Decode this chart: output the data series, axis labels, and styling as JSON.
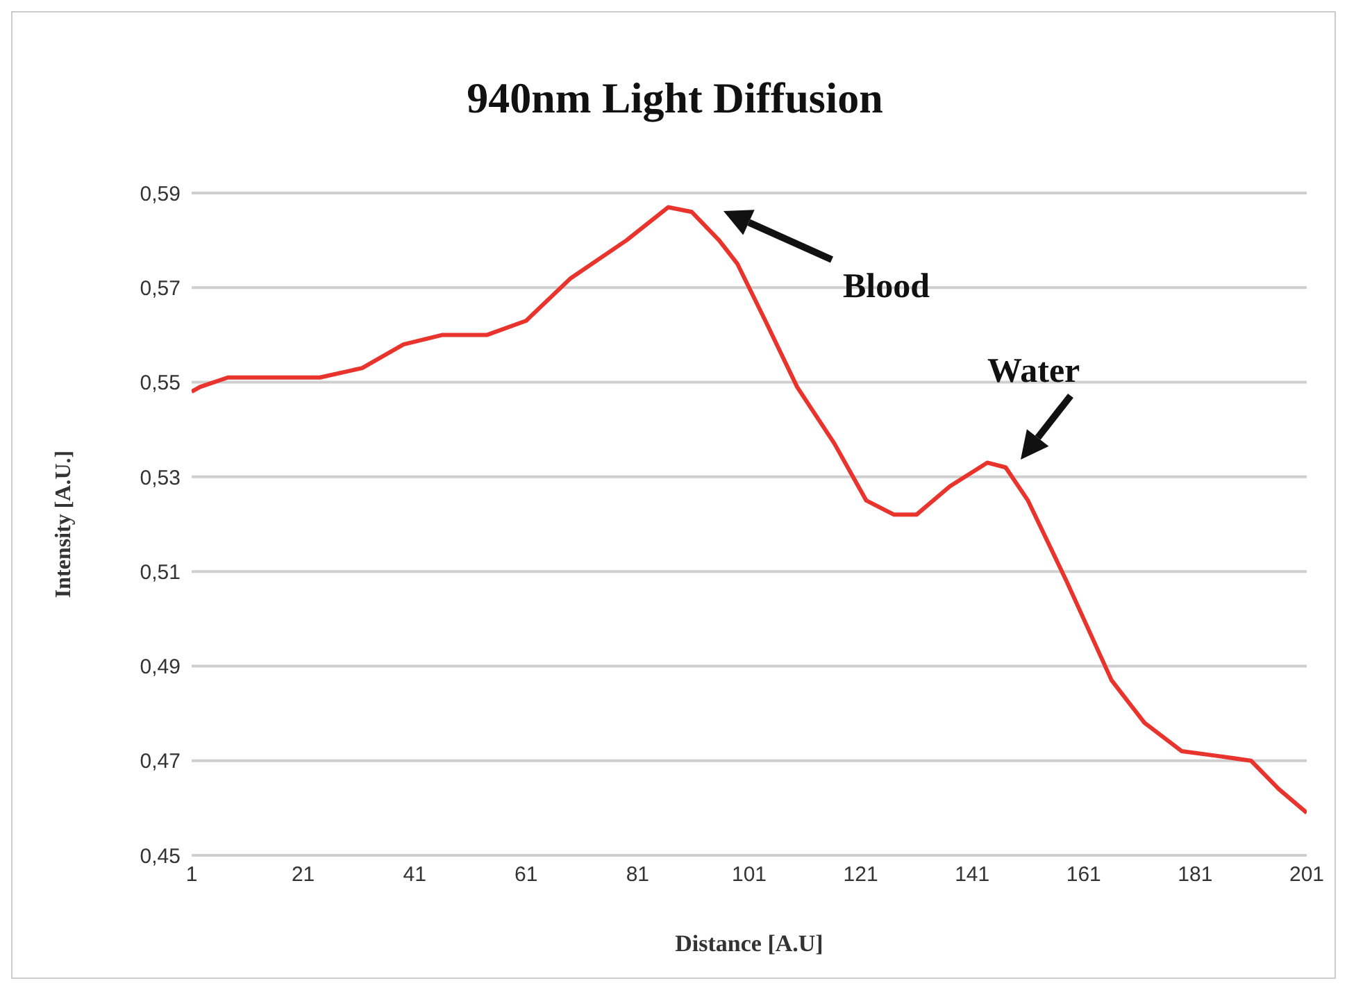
{
  "chart_data": {
    "type": "line",
    "title": "940nm Light Diffusion",
    "xlabel": "Distance [A.U]",
    "ylabel": "Intensity [A.U.]",
    "xlim": [
      1,
      201
    ],
    "xticks": [
      1,
      21,
      41,
      61,
      81,
      101,
      121,
      141,
      161,
      181,
      201
    ],
    "ylim": [
      0.45,
      0.59
    ],
    "yticks": [
      {
        "value": 0.45,
        "label": "0,45"
      },
      {
        "value": 0.47,
        "label": "0,47"
      },
      {
        "value": 0.49,
        "label": "0,49"
      },
      {
        "value": 0.51,
        "label": "0,51"
      },
      {
        "value": 0.53,
        "label": "0,53"
      },
      {
        "value": 0.55,
        "label": "0,55"
      },
      {
        "value": 0.57,
        "label": "0,57"
      },
      {
        "value": 0.59,
        "label": "0,59"
      }
    ],
    "grid": "y",
    "marker": "none",
    "line_style": "solid",
    "legend": false,
    "series": [
      {
        "color": "#e8342c",
        "x": [
          1,
          2.5,
          7.5,
          24,
          31.6,
          39,
          46,
          54,
          61,
          69,
          79,
          86.5,
          90.7,
          95.6,
          98.9,
          103.9,
          109.6,
          116.3,
          122,
          127,
          131,
          137,
          143.7,
          147,
          151,
          157.9,
          166,
          171.9,
          178.6,
          185,
          191,
          196,
          201
        ],
        "values": [
          0.548,
          0.549,
          0.551,
          0.551,
          0.553,
          0.558,
          0.56,
          0.56,
          0.563,
          0.572,
          0.58,
          0.587,
          0.586,
          0.58,
          0.575,
          0.563,
          0.549,
          0.537,
          0.525,
          0.522,
          0.522,
          0.528,
          0.533,
          0.532,
          0.525,
          0.508,
          0.487,
          0.478,
          0.472,
          0.471,
          0.47,
          0.464,
          0.459
        ]
      }
    ],
    "annotations": [
      "Blood",
      "Water"
    ]
  }
}
